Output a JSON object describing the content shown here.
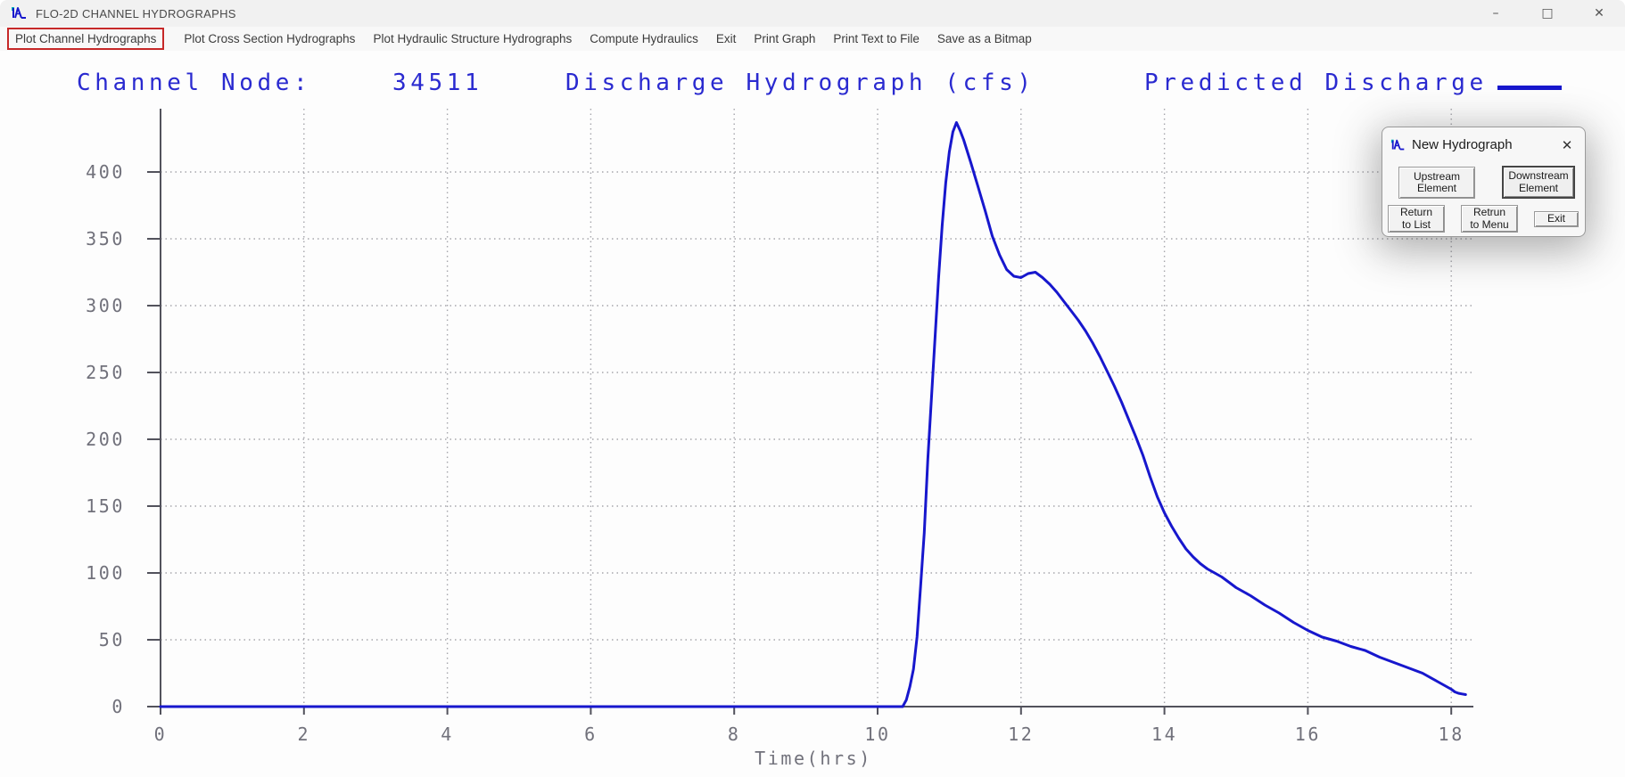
{
  "window": {
    "title": "FLO-2D CHANNEL HYDROGRAPHS",
    "controls": {
      "minimize": "–",
      "maximize": "□",
      "close": "✕"
    }
  },
  "menu": {
    "items": [
      {
        "label": "Plot Channel Hydrographs",
        "highlighted": true
      },
      {
        "label": "Plot Cross Section Hydrographs",
        "highlighted": false
      },
      {
        "label": "Plot Hydraulic Structure Hydrographs",
        "highlighted": false
      },
      {
        "label": "Compute Hydraulics",
        "highlighted": false
      },
      {
        "label": "Exit",
        "highlighted": false
      },
      {
        "label": "Print Graph",
        "highlighted": false
      },
      {
        "label": "Print Text to File",
        "highlighted": false
      },
      {
        "label": "Save as a Bitmap",
        "highlighted": false
      }
    ],
    "highlight_color": "#c62828"
  },
  "header": {
    "node_label": "Channel Node:",
    "node_value": "34511",
    "chart_title": "Discharge Hydrograph (cfs)",
    "legend_label": "Predicted Discharge",
    "text_color": "#2a2ad0"
  },
  "dialog": {
    "title": "New Hydrograph",
    "close_glyph": "✕",
    "buttons": {
      "upstream": {
        "line1": "Upstream",
        "line2": "Element"
      },
      "downstream": {
        "line1": "Downstream",
        "line2": "Element"
      },
      "return_list": {
        "line1": "Return",
        "line2": "to List"
      },
      "return_menu": {
        "line1": "Retrun",
        "line2": "to Menu"
      },
      "exit": {
        "line1": "Exit"
      }
    }
  },
  "chart_data": {
    "type": "line",
    "title": "Discharge Hydrograph (cfs)",
    "xlabel": "Time(hrs)",
    "ylabel": "",
    "xlim": [
      0,
      18.3
    ],
    "ylim": [
      0,
      447
    ],
    "x_ticks": [
      0,
      2,
      4,
      6,
      8,
      10,
      12,
      14,
      16,
      18
    ],
    "y_ticks": [
      0,
      50,
      100,
      150,
      200,
      250,
      300,
      350,
      400
    ],
    "grid": "dotted",
    "grid_color": "#a6a6ac",
    "axis_color": "#52525c",
    "legend": {
      "label": "Predicted Discharge",
      "position": "top-right"
    },
    "series": [
      {
        "name": "Predicted Discharge",
        "color": "#1717cd",
        "points": [
          [
            0,
            0
          ],
          [
            1,
            0
          ],
          [
            2,
            0
          ],
          [
            3,
            0
          ],
          [
            4,
            0
          ],
          [
            5,
            0
          ],
          [
            6,
            0
          ],
          [
            7,
            0
          ],
          [
            8,
            0
          ],
          [
            9,
            0
          ],
          [
            10,
            0
          ],
          [
            10.35,
            0
          ],
          [
            10.4,
            5
          ],
          [
            10.45,
            15
          ],
          [
            10.5,
            28
          ],
          [
            10.55,
            52
          ],
          [
            10.6,
            90
          ],
          [
            10.65,
            130
          ],
          [
            10.7,
            185
          ],
          [
            10.75,
            230
          ],
          [
            10.8,
            275
          ],
          [
            10.85,
            320
          ],
          [
            10.9,
            360
          ],
          [
            10.95,
            392
          ],
          [
            11.0,
            415
          ],
          [
            11.05,
            430
          ],
          [
            11.1,
            437
          ],
          [
            11.15,
            431
          ],
          [
            11.2,
            424
          ],
          [
            11.3,
            407
          ],
          [
            11.4,
            389
          ],
          [
            11.5,
            371
          ],
          [
            11.6,
            352
          ],
          [
            11.7,
            338
          ],
          [
            11.8,
            327
          ],
          [
            11.9,
            322
          ],
          [
            12.0,
            321
          ],
          [
            12.1,
            324
          ],
          [
            12.2,
            325
          ],
          [
            12.3,
            321
          ],
          [
            12.4,
            316
          ],
          [
            12.5,
            310
          ],
          [
            12.6,
            303
          ],
          [
            12.7,
            296
          ],
          [
            12.8,
            289
          ],
          [
            12.9,
            281
          ],
          [
            13.0,
            272
          ],
          [
            13.1,
            262
          ],
          [
            13.2,
            251
          ],
          [
            13.3,
            240
          ],
          [
            13.4,
            228
          ],
          [
            13.5,
            215
          ],
          [
            13.6,
            202
          ],
          [
            13.7,
            188
          ],
          [
            13.8,
            172
          ],
          [
            13.9,
            157
          ],
          [
            14.0,
            145
          ],
          [
            14.1,
            135
          ],
          [
            14.2,
            126
          ],
          [
            14.3,
            118
          ],
          [
            14.4,
            112
          ],
          [
            14.5,
            107
          ],
          [
            14.6,
            103
          ],
          [
            14.7,
            100
          ],
          [
            14.8,
            97
          ],
          [
            14.9,
            93
          ],
          [
            15.0,
            89
          ],
          [
            15.2,
            83
          ],
          [
            15.4,
            76
          ],
          [
            15.6,
            70
          ],
          [
            15.8,
            63
          ],
          [
            16.0,
            57
          ],
          [
            16.2,
            52
          ],
          [
            16.4,
            49
          ],
          [
            16.6,
            45
          ],
          [
            16.8,
            42
          ],
          [
            17.0,
            37
          ],
          [
            17.2,
            33
          ],
          [
            17.4,
            29
          ],
          [
            17.6,
            25
          ],
          [
            17.8,
            19
          ],
          [
            18.0,
            13
          ],
          [
            18.05,
            11
          ],
          [
            18.1,
            10
          ],
          [
            18.15,
            9.5
          ],
          [
            18.2,
            9
          ]
        ]
      }
    ]
  }
}
